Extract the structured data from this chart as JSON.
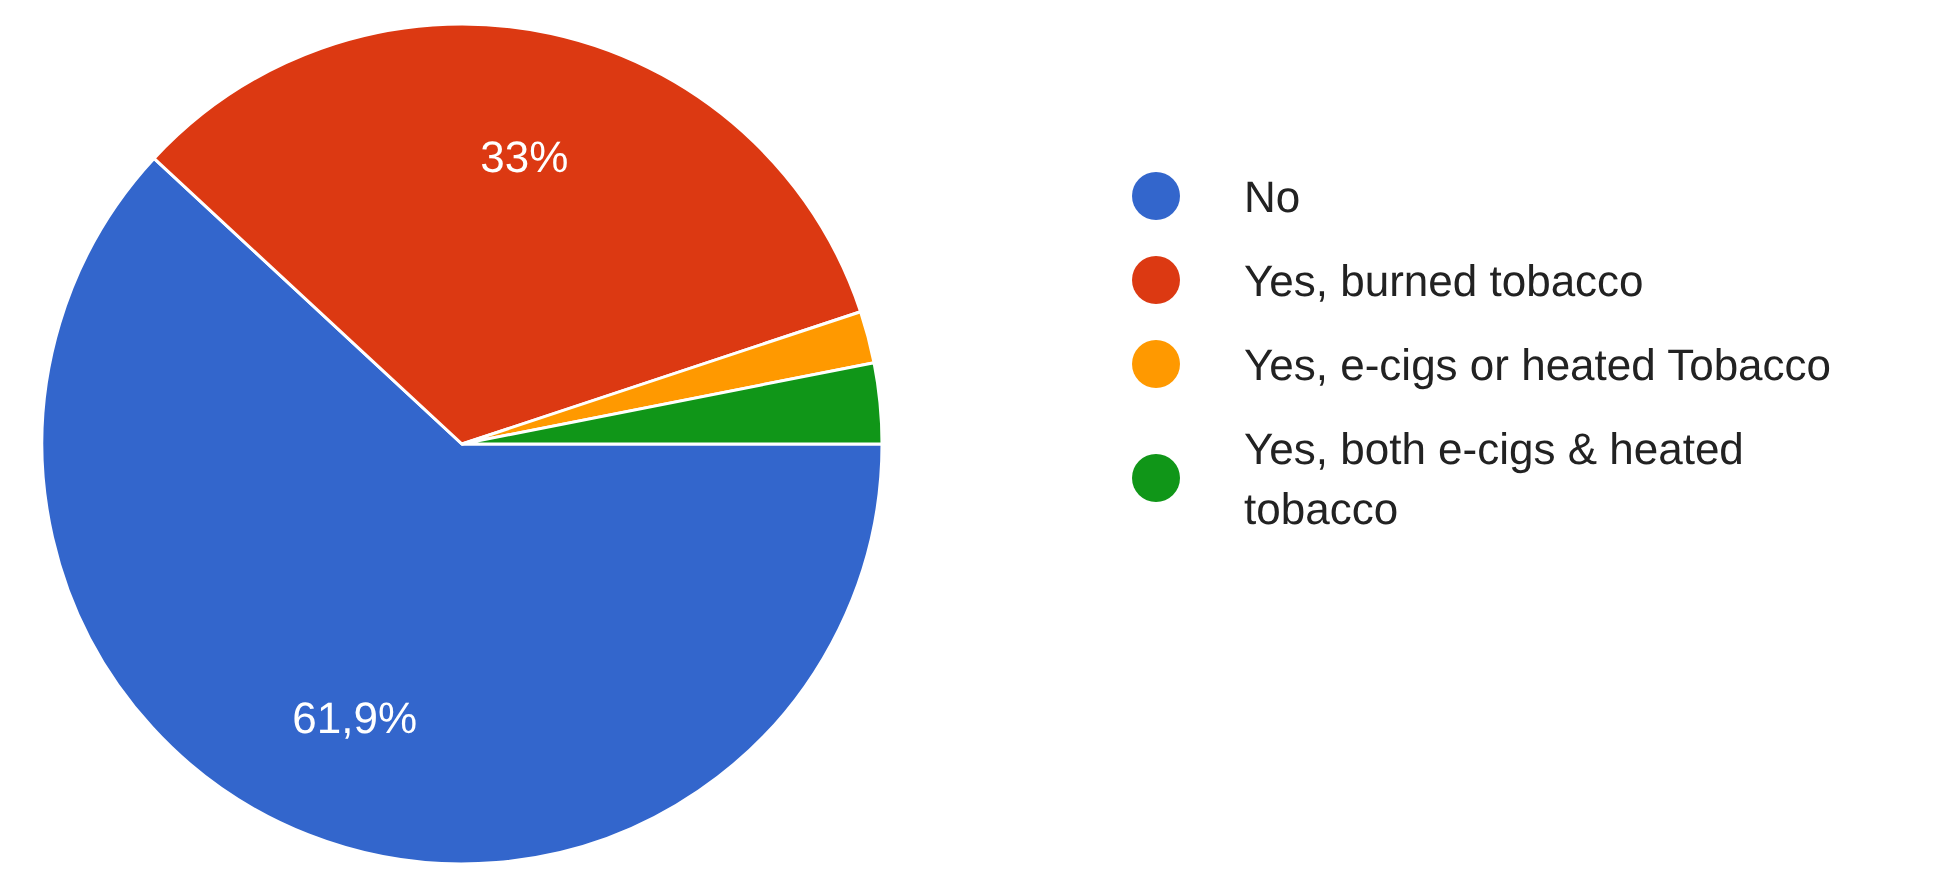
{
  "chart_data": {
    "type": "pie",
    "categories": [
      "No",
      "Yes, burned tobacco",
      "Yes, e-cigs or heated Tobacco",
      "Yes, both e-cigs & heated tobacco"
    ],
    "values": [
      61.9,
      33,
      2.0,
      3.1
    ],
    "colors": [
      "#3366cc",
      "#dc3912",
      "#ff9900",
      "#109618"
    ],
    "value_labels": [
      "61,9%",
      "33%",
      null,
      null
    ],
    "legend": "right"
  }
}
